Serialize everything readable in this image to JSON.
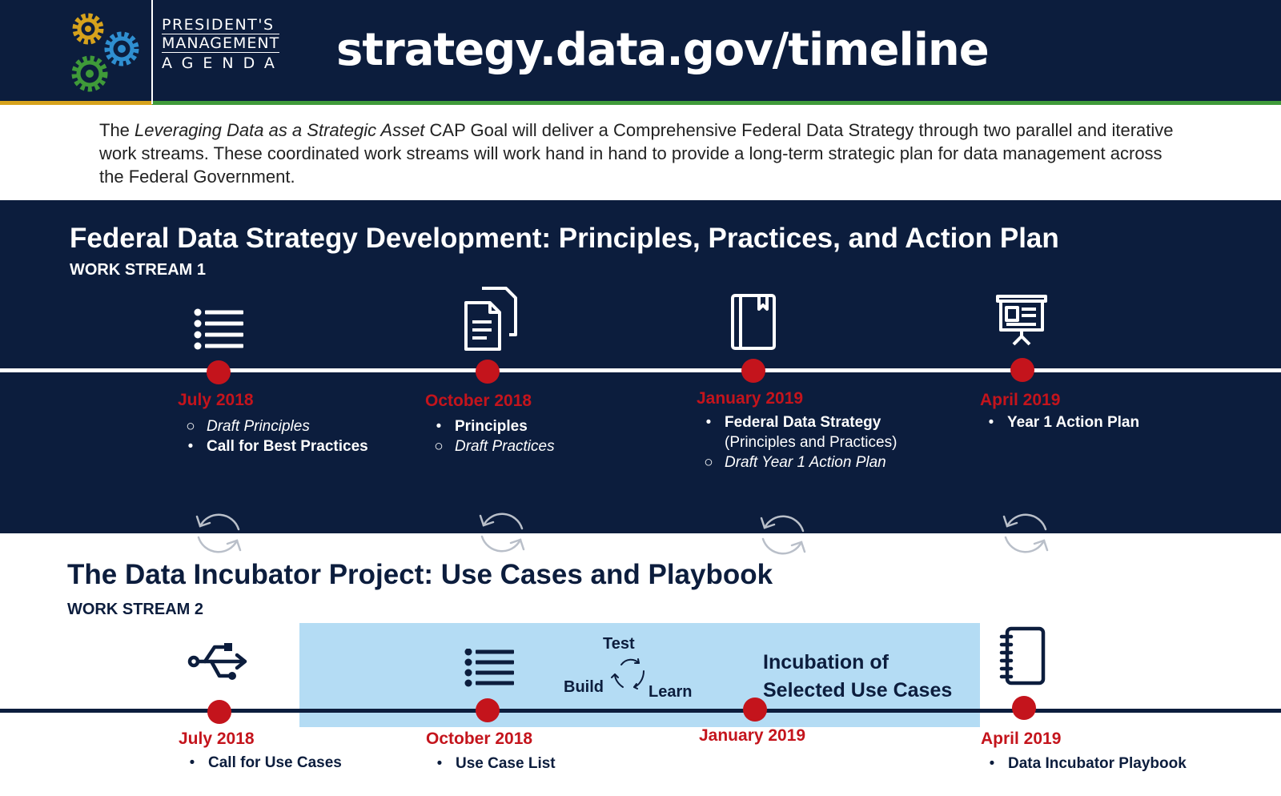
{
  "header": {
    "logo": {
      "line1": "PRESIDENT'S",
      "line2": "MANAGEMENT",
      "line3": "AGENDA"
    },
    "url": "strategy.data.gov/timeline",
    "colors": {
      "navy": "#0c1d3d",
      "gold": "#d6a21c",
      "green": "#3f9a39",
      "blue": "#2f8fd1"
    }
  },
  "intro": {
    "pre": "The ",
    "italic": "Leveraging Data as a Strategic Asset",
    "post": " CAP Goal will deliver a Comprehensive Federal Data Strategy through two parallel and iterative work streams. These coordinated work streams will work hand in hand to provide a long-term strategic plan for data management across the Federal Government."
  },
  "work_stream_1": {
    "title": "Federal Data Strategy Development: Principles, Practices, and Action Plan",
    "subtitle": "WORK STREAM 1",
    "milestones": [
      {
        "date": "July 2018",
        "icon": "list-icon",
        "items": [
          {
            "marker": "○",
            "text": "Draft Principles",
            "style": "italic"
          },
          {
            "marker": "•",
            "text": "Call for Best Practices",
            "style": "bold"
          }
        ]
      },
      {
        "date": "October 2018",
        "icon": "documents-icon",
        "items": [
          {
            "marker": "•",
            "text": "Principles",
            "style": "bold"
          },
          {
            "marker": "○",
            "text": "Draft Practices",
            "style": "italic"
          }
        ]
      },
      {
        "date": "January 2019",
        "icon": "book-icon",
        "items": [
          {
            "marker": "•",
            "text": "Federal Data Strategy",
            "style": "bold"
          },
          {
            "marker": "",
            "text": "(Principles and Practices)",
            "style": "normal"
          },
          {
            "marker": "○",
            "text": "Draft Year 1 Action Plan",
            "style": "italic"
          }
        ]
      },
      {
        "date": "April 2019",
        "icon": "presentation-icon",
        "items": [
          {
            "marker": "•",
            "text": "Year 1 Action Plan",
            "style": "bold"
          }
        ]
      }
    ],
    "accent_color": "#c4141c"
  },
  "work_stream_2": {
    "title": "The Data Incubator Project: Use Cases and Playbook",
    "subtitle": "WORK STREAM 2",
    "cycle": {
      "test": "Test",
      "build": "Build",
      "learn": "Learn"
    },
    "incubation_label": "Incubation of Selected Use Cases",
    "box_color": "#b4dcf4",
    "milestones": [
      {
        "date": "July 2018",
        "icon": "usb-branch-icon",
        "items": [
          {
            "marker": "•",
            "text": "Call for Use Cases",
            "style": "bold"
          }
        ]
      },
      {
        "date": "October 2018",
        "icon": "list-icon",
        "items": [
          {
            "marker": "•",
            "text": "Use Case List",
            "style": "bold"
          }
        ]
      },
      {
        "date": "January 2019",
        "icon": "",
        "items": []
      },
      {
        "date": "April 2019",
        "icon": "notebook-icon",
        "items": [
          {
            "marker": "•",
            "text": "Data Incubator Playbook",
            "style": "bold"
          }
        ]
      }
    ]
  }
}
